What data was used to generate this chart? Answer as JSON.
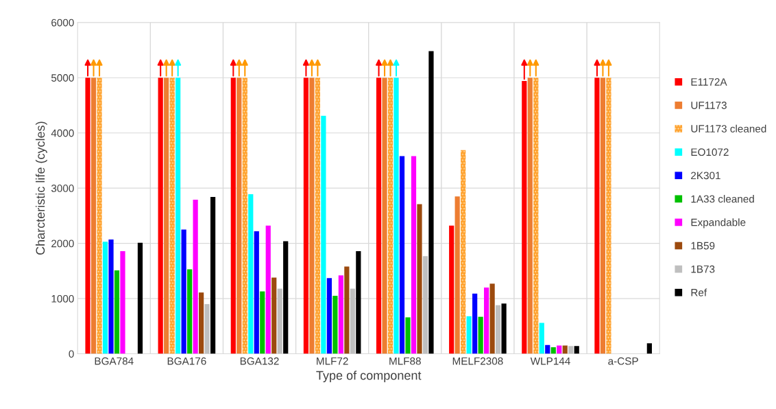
{
  "chart_data": {
    "type": "bar",
    "xlabel": "Type of component",
    "ylabel": "Charcteristic life (cycles)",
    "categories": [
      "BGA784",
      "BGA176",
      "BGA132",
      "MLF72",
      "MLF88",
      "MELF2308",
      "WLP144",
      "a-CSP"
    ],
    "ylim": [
      0,
      6000
    ],
    "yticks": [
      0,
      1000,
      2000,
      3000,
      4000,
      5000,
      6000
    ],
    "grid": true,
    "legend": "right",
    "series": [
      {
        "name": "E1172A",
        "color": "#ff0000",
        "values": [
          5000,
          5000,
          5000,
          5000,
          5000,
          2320,
          4940,
          5000
        ]
      },
      {
        "name": "UF1173",
        "color": "#ed7d31",
        "values": [
          5000,
          5000,
          5000,
          5000,
          5000,
          2850,
          5000,
          5000
        ]
      },
      {
        "name": "UF1173 cleaned",
        "color": "#ffa02a",
        "values": [
          5000,
          5000,
          5000,
          5000,
          5000,
          3690,
          5000,
          5000
        ]
      },
      {
        "name": "EO1072",
        "color": "#00ffff",
        "values": [
          2030,
          5000,
          2890,
          4310,
          5000,
          680,
          560,
          null
        ]
      },
      {
        "name": "2K301",
        "color": "#0000ff",
        "values": [
          2070,
          2250,
          2220,
          1370,
          3580,
          1090,
          160,
          null
        ]
      },
      {
        "name": "1A33 cleaned",
        "color": "#00c000",
        "values": [
          1510,
          1530,
          1130,
          1050,
          660,
          670,
          120,
          null
        ]
      },
      {
        "name": "Expandable",
        "color": "#ff00ff",
        "values": [
          1860,
          2790,
          2320,
          1420,
          3580,
          1200,
          150,
          null
        ]
      },
      {
        "name": "1B59",
        "color": "#9c4a0e",
        "values": [
          null,
          1110,
          1380,
          1580,
          2710,
          1270,
          150,
          null
        ]
      },
      {
        "name": "1B73",
        "color": "#bfbfbf",
        "values": [
          null,
          900,
          1180,
          1180,
          1770,
          880,
          140,
          null
        ]
      },
      {
        "name": "Ref",
        "color": "#000000",
        "values": [
          2010,
          2840,
          2040,
          1860,
          5480,
          910,
          140,
          190
        ]
      }
    ]
  }
}
